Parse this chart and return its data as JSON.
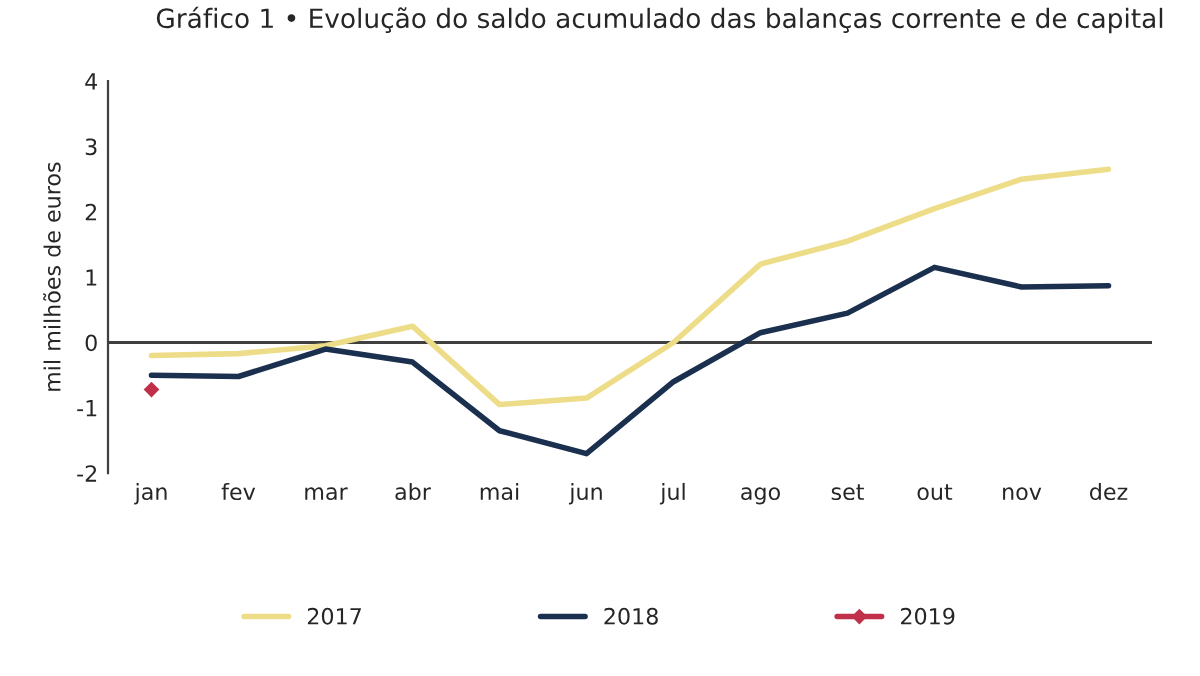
{
  "chart_data": {
    "type": "line",
    "title": "Gráfico 1 • Evolução do saldo acumulado das balanças corrente e de capital",
    "ylabel": "mil milhões de euros",
    "categories": [
      "jan",
      "fev",
      "mar",
      "abr",
      "mai",
      "jun",
      "jul",
      "ago",
      "set",
      "out",
      "nov",
      "dez"
    ],
    "series": [
      {
        "name": "2017",
        "color": "#eedd88",
        "marker": "none",
        "values": [
          -0.2,
          -0.17,
          -0.05,
          0.25,
          -0.95,
          -0.85,
          0.0,
          1.2,
          1.55,
          2.05,
          2.5,
          2.65
        ]
      },
      {
        "name": "2018",
        "color": "#1b2f4e",
        "marker": "none",
        "values": [
          -0.5,
          -0.52,
          -0.1,
          -0.3,
          -1.35,
          -1.7,
          -0.6,
          0.15,
          0.45,
          1.15,
          0.85,
          0.87
        ]
      },
      {
        "name": "2019",
        "color": "#c0304a",
        "marker": "diamond",
        "values": [
          -0.72,
          null,
          null,
          null,
          null,
          null,
          null,
          null,
          null,
          null,
          null,
          null
        ]
      }
    ],
    "ylim": [
      -2,
      4
    ],
    "yticks": [
      -2,
      -1,
      0,
      1,
      2,
      3,
      4
    ],
    "ref_lines": [
      {
        "axis": "y",
        "value": 0,
        "color": "#404040"
      }
    ],
    "grid": false,
    "legend": "bottom"
  }
}
